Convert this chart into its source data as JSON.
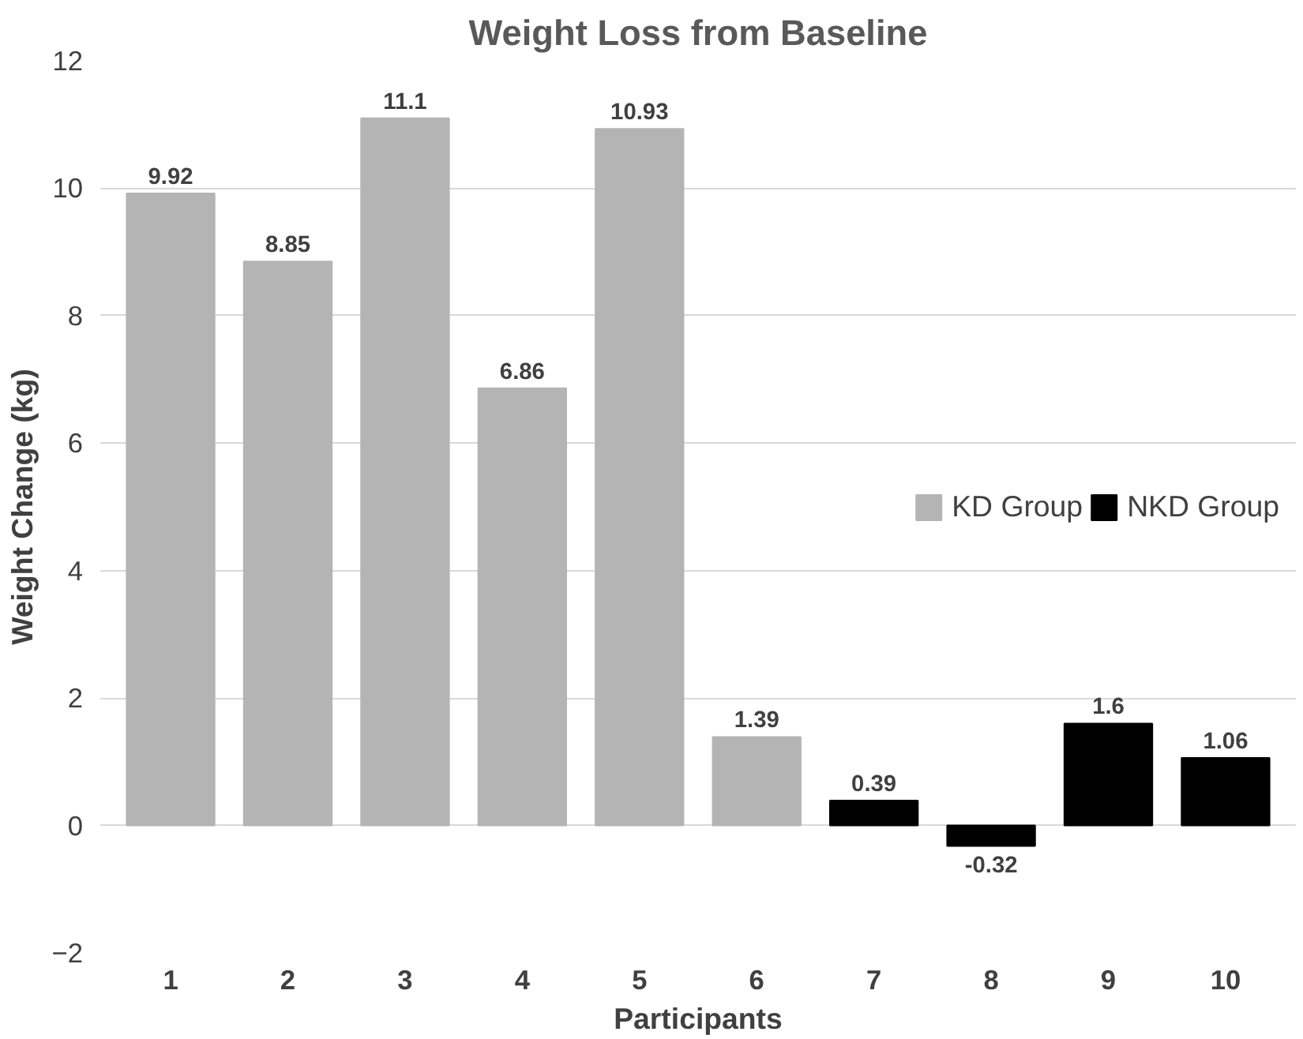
{
  "chart_data": {
    "type": "bar",
    "title": "Weight Loss from Baseline",
    "xlabel": "Participants",
    "ylabel": "Weight Change (kg)",
    "categories": [
      "1",
      "2",
      "3",
      "4",
      "5",
      "6",
      "7",
      "8",
      "9",
      "10"
    ],
    "series": [
      {
        "name": "KD Group",
        "color": "#b4b4b4",
        "values": [
          9.92,
          8.85,
          11.1,
          6.86,
          10.93,
          1.39,
          null,
          null,
          null,
          null
        ]
      },
      {
        "name": "NKD Group",
        "color": "#000000",
        "values": [
          null,
          null,
          null,
          null,
          null,
          null,
          0.39,
          -0.32,
          1.6,
          1.06
        ]
      }
    ],
    "ylim": [
      -2,
      12
    ],
    "yticks": [
      -2,
      0,
      2,
      4,
      6,
      8,
      10,
      12
    ],
    "grid": "y",
    "legend": "right",
    "data_labels": true
  }
}
